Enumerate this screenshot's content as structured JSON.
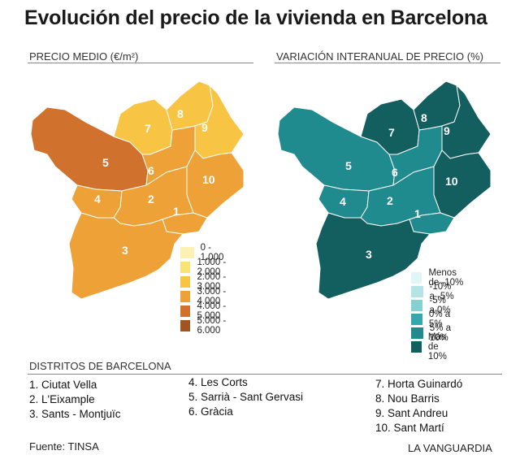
{
  "title": "Evolución del precio de la vivienda en Barcelona",
  "left_map": {
    "heading": "PRECIO MEDIO (€/m²)",
    "legend": [
      {
        "label": "0 - 1.000",
        "color": "#fdf0b5"
      },
      {
        "label": "1.000 - 2.000",
        "color": "#f9e374"
      },
      {
        "label": "2.000 - 3.000",
        "color": "#f8c443"
      },
      {
        "label": "3.000 - 4.000",
        "color": "#eda136"
      },
      {
        "label": "4.000 - 5.000",
        "color": "#d0722e"
      },
      {
        "label": "5.000 - 6.000",
        "color": "#a3541e"
      }
    ],
    "district_colors": {
      "1": "#eda136",
      "2": "#eda136",
      "3": "#eda136",
      "4": "#eda136",
      "5": "#d0722e",
      "6": "#eda136",
      "7": "#f8c443",
      "8": "#f8c443",
      "9": "#f8c443",
      "10": "#eda136"
    }
  },
  "right_map": {
    "heading": "VARIACIÓN INTERANUAL DE PRECIO (%)",
    "legend": [
      {
        "label": "Menos de -10%",
        "color": "#e3f6f7"
      },
      {
        "label": "-10% a -5%",
        "color": "#b4e4e6"
      },
      {
        "label": "-5% a 0%",
        "color": "#86cfd2"
      },
      {
        "label": "0% a 5%",
        "color": "#33a9ae"
      },
      {
        "label": "5% a 10%",
        "color": "#1f8b8f"
      },
      {
        "label": "Más de 10%",
        "color": "#135e5f"
      }
    ],
    "district_colors": {
      "1": "#1f8b8f",
      "2": "#1f8b8f",
      "3": "#135e5f",
      "4": "#1f8b8f",
      "5": "#1f8b8f",
      "6": "#1f8b8f",
      "7": "#135e5f",
      "8": "#135e5f",
      "9": "#135e5f",
      "10": "#135e5f"
    }
  },
  "districts": {
    "heading": "DISTRITOS DE BARCELONA",
    "col1": [
      "1. Ciutat Vella",
      "2. L'Eixample",
      "3. Sants - Montjuïc"
    ],
    "col2": [
      "4. Les Corts",
      "5. Sarrià - Sant Gervasi",
      "6. Gràcia"
    ],
    "col3": [
      "7. Horta Guinardó",
      "8. Nou Barris",
      "9. Sant Andreu",
      "10. Sant Martí"
    ]
  },
  "source": "Fuente: TINSA",
  "publisher": "LA VANGUARDIA",
  "district_numbers": [
    "1",
    "2",
    "3",
    "4",
    "5",
    "6",
    "7",
    "8",
    "9",
    "10"
  ]
}
